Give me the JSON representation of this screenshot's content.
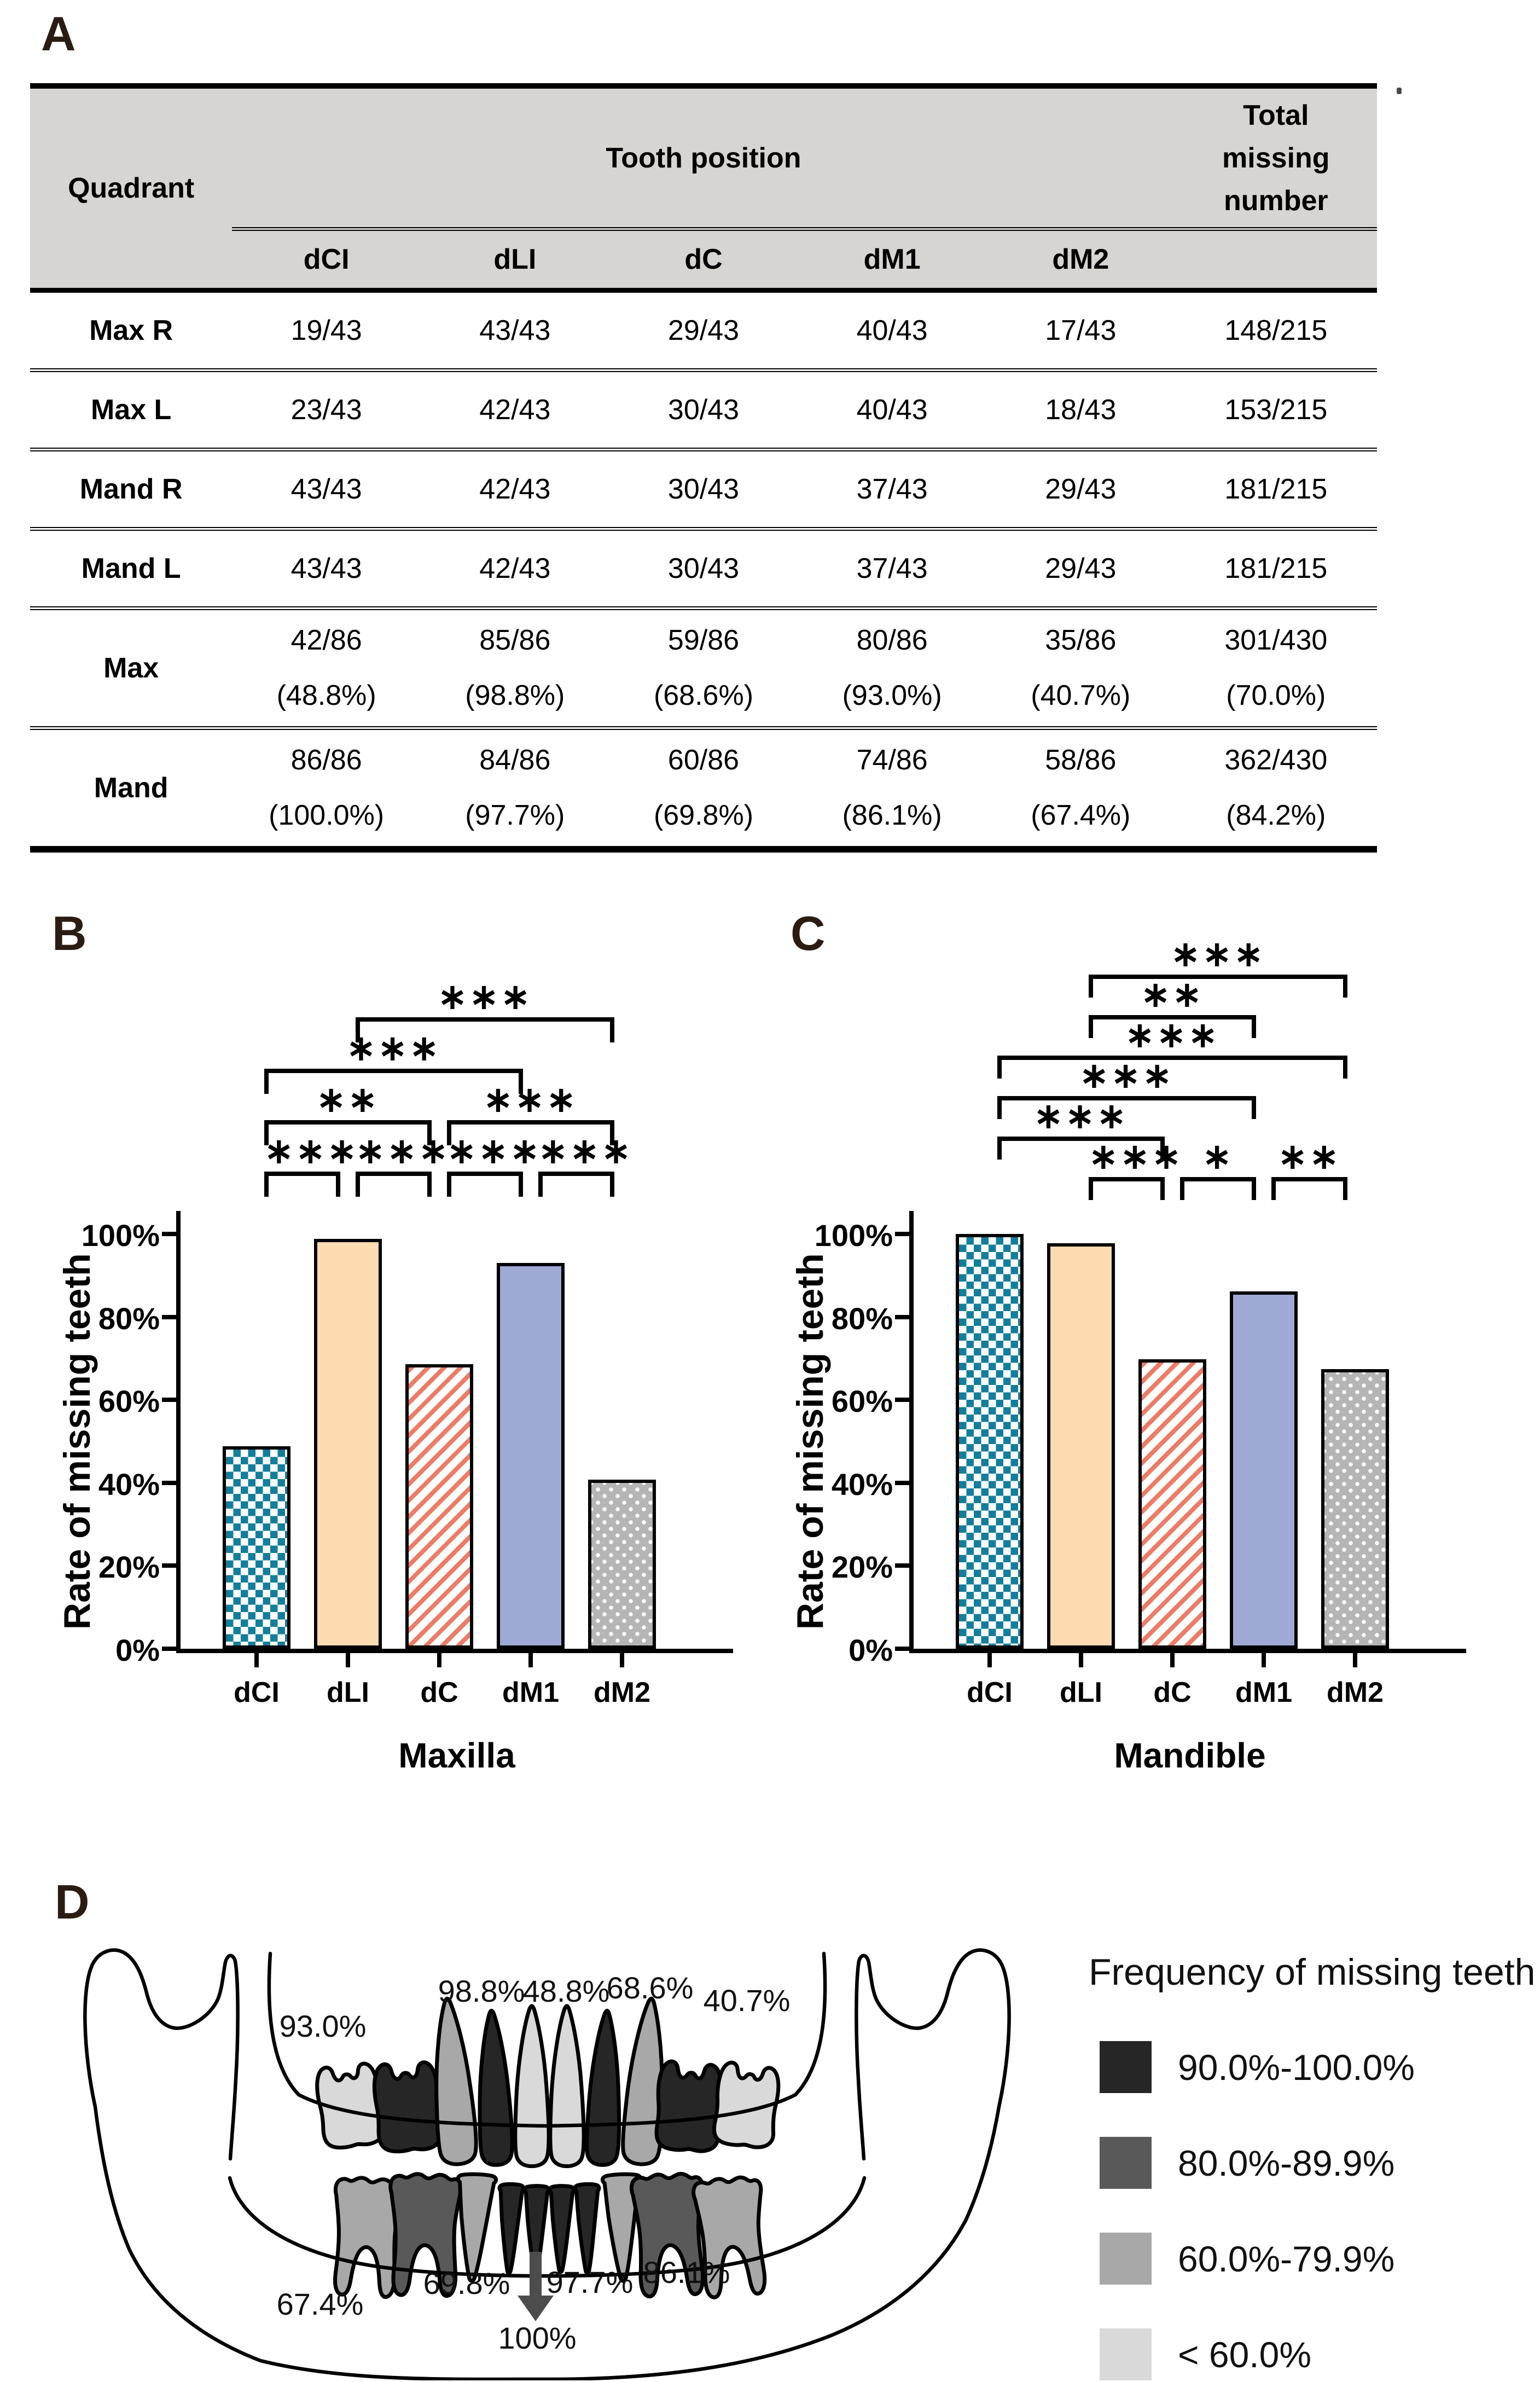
{
  "panels": {
    "a": "A",
    "b": "B",
    "c": "C",
    "d": "D"
  },
  "table": {
    "header": {
      "quadrant": "Quadrant",
      "tooth_position": "Tooth position",
      "total": "Total missing number"
    },
    "columns": [
      "dCI",
      "dLI",
      "dC",
      "dM1",
      "dM2"
    ],
    "rows": [
      {
        "label": "Max R",
        "values": [
          "19/43",
          "43/43",
          "29/43",
          "40/43",
          "17/43",
          "148/215"
        ]
      },
      {
        "label": "Max L",
        "values": [
          "23/43",
          "42/43",
          "30/43",
          "40/43",
          "18/43",
          "153/215"
        ]
      },
      {
        "label": "Mand R",
        "values": [
          "43/43",
          "42/43",
          "30/43",
          "37/43",
          "29/43",
          "181/215"
        ]
      },
      {
        "label": "Mand L",
        "values": [
          "43/43",
          "42/43",
          "30/43",
          "37/43",
          "29/43",
          "181/215"
        ]
      },
      {
        "label": "Max",
        "values": [
          [
            "42/86",
            "(48.8%)"
          ],
          [
            "85/86",
            "(98.8%)"
          ],
          [
            "59/86",
            "(68.6%)"
          ],
          [
            "80/86",
            "(93.0%)"
          ],
          [
            "35/86",
            "(40.7%)"
          ],
          [
            "301/430",
            "(70.0%)"
          ]
        ]
      },
      {
        "label": "Mand",
        "values": [
          [
            "86/86",
            "(100.0%)"
          ],
          [
            "84/86",
            "(97.7%)"
          ],
          [
            "60/86",
            "(69.8%)"
          ],
          [
            "74/86",
            "(86.1%)"
          ],
          [
            "58/86",
            "(67.4%)"
          ],
          [
            "362/430",
            "(84.2%)"
          ]
        ]
      }
    ]
  },
  "chart_data": [
    {
      "panel": "B",
      "type": "bar",
      "title": "",
      "xlabel": "Maxilla",
      "ylabel": "Rate of missing teeth",
      "categories": [
        "dCI",
        "dLI",
        "dC",
        "dM1",
        "dM2"
      ],
      "values": [
        48.8,
        98.8,
        68.6,
        93.0,
        40.7
      ],
      "ylim": [
        0,
        100
      ],
      "ytick_labels": [
        "0%",
        "20%",
        "40%",
        "60%",
        "80%",
        "100%"
      ],
      "grid": false,
      "bar_styles": [
        {
          "pattern": "checker",
          "color": "#127e9c"
        },
        {
          "pattern": "solid",
          "color": "#fcdbb0"
        },
        {
          "pattern": "stripes",
          "color": "#ed7b65"
        },
        {
          "pattern": "solid",
          "color": "#9fa9d6"
        },
        {
          "pattern": "dots",
          "color": "#b5b5b5"
        }
      ],
      "significance": [
        {
          "from": 0,
          "to": 1,
          "stars": "***",
          "level": 1
        },
        {
          "from": 1,
          "to": 2,
          "stars": "***",
          "level": 1
        },
        {
          "from": 2,
          "to": 3,
          "stars": "***",
          "level": 1
        },
        {
          "from": 3,
          "to": 4,
          "stars": "***",
          "level": 1
        },
        {
          "from": 0,
          "to": 2,
          "stars": "**",
          "level": 2
        },
        {
          "from": 2,
          "to": 4,
          "stars": "***",
          "level": 2
        },
        {
          "from": 0,
          "to": 3,
          "stars": "***",
          "level": 3
        },
        {
          "from": 1,
          "to": 4,
          "stars": "***",
          "level": 4
        }
      ]
    },
    {
      "panel": "C",
      "type": "bar",
      "title": "",
      "xlabel": "Mandible",
      "ylabel": "Rate of missing teeth",
      "categories": [
        "dCI",
        "dLI",
        "dC",
        "dM1",
        "dM2"
      ],
      "values": [
        100.0,
        97.7,
        69.8,
        86.1,
        67.4
      ],
      "ylim": [
        0,
        100
      ],
      "ytick_labels": [
        "0%",
        "20%",
        "40%",
        "60%",
        "80%",
        "100%"
      ],
      "grid": false,
      "bar_styles": [
        {
          "pattern": "checker",
          "color": "#127e9c"
        },
        {
          "pattern": "solid",
          "color": "#fcdbb0"
        },
        {
          "pattern": "stripes",
          "color": "#ed7b65"
        },
        {
          "pattern": "solid",
          "color": "#9fa9d6"
        },
        {
          "pattern": "dots",
          "color": "#b5b5b5"
        }
      ],
      "significance": [
        {
          "from": 1,
          "to": 2,
          "stars": "***",
          "level": 1
        },
        {
          "from": 2,
          "to": 3,
          "stars": "*",
          "level": 1
        },
        {
          "from": 3,
          "to": 4,
          "stars": "**",
          "level": 1
        },
        {
          "from": 0,
          "to": 2,
          "stars": "***",
          "level": 2
        },
        {
          "from": 0,
          "to": 3,
          "stars": "***",
          "level": 3
        },
        {
          "from": 0,
          "to": 4,
          "stars": "***",
          "level": 4
        },
        {
          "from": 1,
          "to": 3,
          "stars": "**",
          "level": 5
        },
        {
          "from": 1,
          "to": 4,
          "stars": "***",
          "level": 6
        }
      ]
    }
  ],
  "panel_d": {
    "legend": {
      "title": "Frequency of missing teeth",
      "items": [
        {
          "label": "90.0%-100.0%",
          "color": "#262626"
        },
        {
          "label": "80.0%-89.9%",
          "color": "#595959"
        },
        {
          "label": "60.0%-79.9%",
          "color": "#a8a8a8"
        },
        {
          "label": "< 60.0%",
          "color": "#d9d9d9"
        }
      ]
    },
    "upper_shades": {
      "dCI": 3,
      "dLI": 0,
      "dC": 2,
      "dM1": 0,
      "dM2": 3
    },
    "lower_shades": {
      "dCI": 0,
      "dLI": 0,
      "dC": 2,
      "dM1": 1,
      "dM2": 2
    },
    "upper_labels": [
      "93.0%",
      "98.8%",
      "48.8%",
      "68.6%",
      "40.7%"
    ],
    "lower_labels": [
      "67.4%",
      "69.8%",
      "97.7%",
      "86.1%"
    ],
    "arrow_label": "100%"
  }
}
